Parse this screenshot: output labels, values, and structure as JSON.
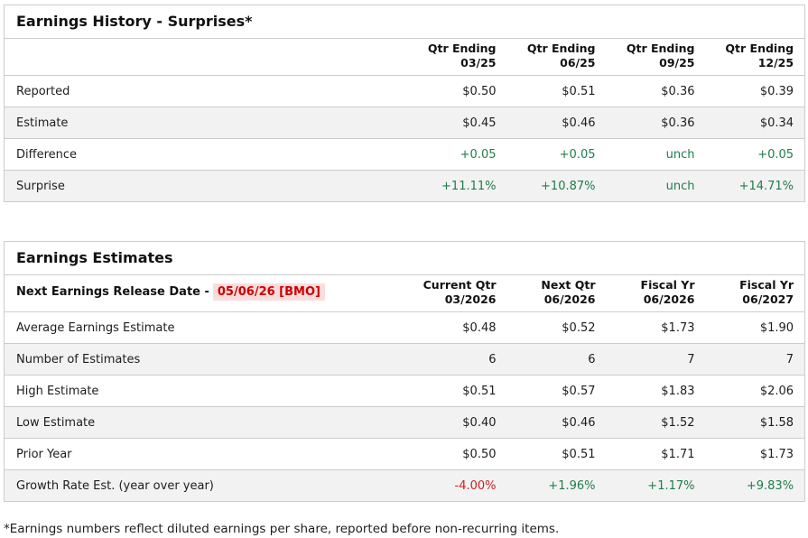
{
  "colors": {
    "green": "#1e7d4b",
    "red": "#cc2222",
    "date_red": "#cc0000",
    "date_highlight_bg": "#fbdcdc",
    "row_stripe": "#f2f2f2",
    "table_border": "#cccccc"
  },
  "surprises": {
    "title": "Earnings History - Surprises*",
    "columns": [
      {
        "line1": "Qtr Ending",
        "line2": "03/25"
      },
      {
        "line1": "Qtr Ending",
        "line2": "06/25"
      },
      {
        "line1": "Qtr Ending",
        "line2": "09/25"
      },
      {
        "line1": "Qtr Ending",
        "line2": "12/25"
      }
    ],
    "rows": [
      {
        "label": "Reported",
        "values": [
          "$0.50",
          "$0.51",
          "$0.36",
          "$0.39"
        ],
        "value_style": "default"
      },
      {
        "label": "Estimate",
        "values": [
          "$0.45",
          "$0.46",
          "$0.36",
          "$0.34"
        ],
        "value_style": "default"
      },
      {
        "label": "Difference",
        "values": [
          "+0.05",
          "+0.05",
          "unch",
          "+0.05"
        ],
        "value_style": "green"
      },
      {
        "label": "Surprise",
        "values": [
          "+11.11%",
          "+10.87%",
          "unch",
          "+14.71%"
        ],
        "value_style": "green"
      }
    ]
  },
  "estimates": {
    "title": "Earnings Estimates",
    "release_label": "Next Earnings Release Date -",
    "release_date": "05/06/26 [BMO]",
    "columns": [
      {
        "line1": "Current Qtr",
        "line2": "03/2026"
      },
      {
        "line1": "Next Qtr",
        "line2": "06/2026"
      },
      {
        "line1": "Fiscal Yr",
        "line2": "06/2026"
      },
      {
        "line1": "Fiscal Yr",
        "line2": "06/2027"
      }
    ],
    "rows": [
      {
        "label": "Average Earnings Estimate",
        "values": [
          "$0.48",
          "$0.52",
          "$1.73",
          "$1.90"
        ],
        "value_style": "default"
      },
      {
        "label": "Number of Estimates",
        "values": [
          "6",
          "6",
          "7",
          "7"
        ],
        "value_style": "default"
      },
      {
        "label": "High Estimate",
        "values": [
          "$0.51",
          "$0.57",
          "$1.83",
          "$2.06"
        ],
        "value_style": "default"
      },
      {
        "label": "Low Estimate",
        "values": [
          "$0.40",
          "$0.46",
          "$1.52",
          "$1.58"
        ],
        "value_style": "default"
      },
      {
        "label": "Prior Year",
        "values": [
          "$0.50",
          "$0.51",
          "$1.71",
          "$1.73"
        ],
        "value_style": "default"
      },
      {
        "label": "Growth Rate Est. (year over year)",
        "values": [
          "-4.00%",
          "+1.96%",
          "+1.17%",
          "+9.83%"
        ],
        "value_style": [
          "red",
          "green",
          "green",
          "green"
        ]
      }
    ]
  },
  "footnote": "*Earnings numbers reflect diluted earnings per share, reported before non-recurring items."
}
